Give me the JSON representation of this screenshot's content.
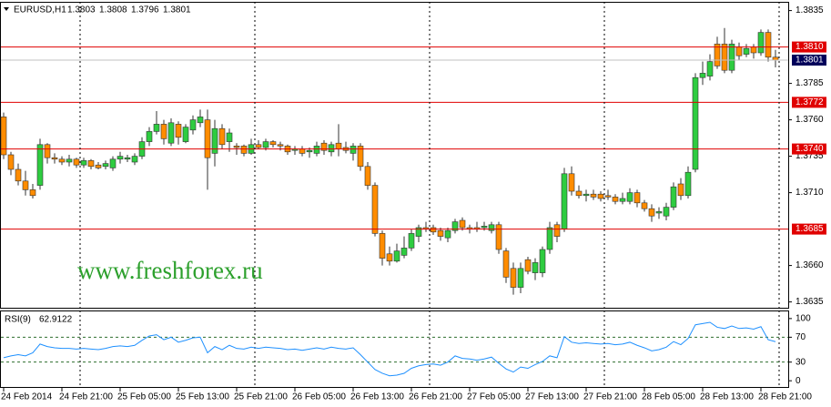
{
  "chart_data": [
    {
      "type": "candlestick",
      "title": "EURUSD,H1",
      "watermark": "www.freshforex.ru",
      "categories": [
        "24 Feb 2014",
        null,
        null,
        null,
        null,
        null,
        null,
        null,
        "24 Feb 21:00",
        null,
        null,
        null,
        null,
        null,
        null,
        null,
        "25 Feb 05:00",
        null,
        null,
        null,
        null,
        null,
        null,
        null,
        "25 Feb 13:00",
        null,
        null,
        null,
        null,
        null,
        null,
        null,
        "25 Feb 21:00",
        null,
        null,
        null,
        null,
        null,
        null,
        null,
        "26 Feb 05:00",
        null,
        null,
        null,
        null,
        null,
        null,
        null,
        "26 Feb 13:00",
        null,
        null,
        null,
        null,
        null,
        null,
        null,
        "26 Feb 21:00",
        null,
        null,
        null,
        null,
        null,
        null,
        null,
        "27 Feb 05:00",
        null,
        null,
        null,
        null,
        null,
        null,
        null,
        "27 Feb 13:00",
        null,
        null,
        null,
        null,
        null,
        null,
        null,
        "27 Feb 21:00",
        null,
        null,
        null,
        null,
        null,
        null,
        null,
        "28 Feb 05:00",
        null,
        null,
        null,
        null,
        null,
        null,
        null,
        "28 Feb 13:00",
        null,
        null,
        null,
        null,
        null,
        null,
        null,
        "28 Feb 21:00",
        null,
        null
      ],
      "open": [
        1.3762,
        1.3736,
        1.3726,
        1.3718,
        1.3712,
        1.3715,
        1.3743,
        1.3734,
        1.3733,
        1.3731,
        1.3733,
        1.3729,
        1.3732,
        1.3729,
        1.3728,
        1.3727,
        1.3733,
        1.3733,
        1.3731,
        1.3735,
        1.3745,
        1.3752,
        1.3757,
        1.3744,
        1.3757,
        1.3745,
        1.3753,
        1.3758,
        1.376,
        1.3737,
        1.3754,
        1.3745,
        1.3742,
        1.3742,
        1.3737,
        1.3743,
        1.3741,
        1.3745,
        1.3743,
        1.3742,
        1.3739,
        1.374,
        1.3738,
        1.3737,
        1.3744,
        1.3738,
        1.3744,
        1.3741,
        1.3737,
        1.3742,
        1.3728,
        1.3715,
        1.3682,
        1.3668,
        1.3663,
        1.3667,
        1.3672,
        1.368,
        1.3686,
        1.3686,
        1.3684,
        1.3679,
        1.3684,
        1.3691,
        1.3686,
        1.3686,
        1.3686,
        1.3684,
        1.3688,
        1.367,
        1.3658,
        1.3645,
        1.3664,
        1.3655,
        1.3655,
        1.3671,
        1.3688,
        1.3685,
        1.3723,
        1.3711,
        1.3708,
        1.3709,
        1.3709,
        1.3708,
        1.3707,
        1.3704,
        1.3704,
        1.371,
        1.3703,
        1.3699,
        1.3696,
        1.3694,
        1.37,
        1.3716,
        1.3708,
        1.3726,
        1.3789,
        1.379,
        1.3812,
        1.3812,
        1.3794,
        1.381,
        1.3805,
        1.381,
        1.3806,
        1.382,
        1.3803
      ],
      "high": [
        1.3765,
        1.3738,
        1.373,
        1.3725,
        1.3716,
        1.3747,
        1.3744,
        1.3737,
        1.3735,
        1.3736,
        1.3734,
        1.3734,
        1.3733,
        1.3731,
        1.3732,
        1.3735,
        1.3738,
        1.3736,
        1.3737,
        1.3748,
        1.3755,
        1.3766,
        1.376,
        1.3761,
        1.3759,
        1.3757,
        1.3763,
        1.3767,
        1.3767,
        1.376,
        1.3757,
        1.3754,
        1.3744,
        1.3743,
        1.3747,
        1.3746,
        1.3747,
        1.3746,
        1.3745,
        1.3743,
        1.3742,
        1.3742,
        1.3741,
        1.3745,
        1.3746,
        1.3745,
        1.3757,
        1.3745,
        1.3744,
        1.3744,
        1.3731,
        1.3717,
        1.3684,
        1.3673,
        1.3675,
        1.368,
        1.3685,
        1.3688,
        1.369,
        1.3688,
        1.3686,
        1.3686,
        1.3692,
        1.3693,
        1.3688,
        1.369,
        1.369,
        1.369,
        1.369,
        1.3672,
        1.3662,
        1.3662,
        1.3666,
        1.3665,
        1.3673,
        1.369,
        1.369,
        1.3727,
        1.3728,
        1.3715,
        1.3712,
        1.3712,
        1.3711,
        1.3712,
        1.3709,
        1.371,
        1.3713,
        1.3712,
        1.3705,
        1.3702,
        1.37,
        1.3703,
        1.3717,
        1.372,
        1.3728,
        1.3792,
        1.38,
        1.3805,
        1.3817,
        1.3823,
        1.3815,
        1.3813,
        1.3812,
        1.3812,
        1.3822,
        1.3822,
        1.3808
      ],
      "low": [
        1.3733,
        1.3722,
        1.3715,
        1.3708,
        1.3706,
        1.3712,
        1.373,
        1.373,
        1.3729,
        1.3728,
        1.3727,
        1.3727,
        1.3726,
        1.3726,
        1.3726,
        1.3725,
        1.373,
        1.3731,
        1.3729,
        1.3733,
        1.3742,
        1.375,
        1.3743,
        1.3742,
        1.3743,
        1.3744,
        1.375,
        1.3755,
        1.3712,
        1.3728,
        1.374,
        1.3738,
        1.3736,
        1.3735,
        1.3736,
        1.374,
        1.3739,
        1.3741,
        1.3739,
        1.3736,
        1.3736,
        1.3735,
        1.3734,
        1.3735,
        1.3736,
        1.3735,
        1.3735,
        1.3737,
        1.3732,
        1.3725,
        1.3712,
        1.368,
        1.366,
        1.366,
        1.3662,
        1.3665,
        1.367,
        1.3676,
        1.3683,
        1.3681,
        1.3677,
        1.3676,
        1.3682,
        1.3684,
        1.3682,
        1.3683,
        1.3684,
        1.3682,
        1.3668,
        1.3648,
        1.364,
        1.3641,
        1.3654,
        1.365,
        1.3652,
        1.3668,
        1.3676,
        1.3683,
        1.3708,
        1.3706,
        1.3704,
        1.3705,
        1.3704,
        1.3705,
        1.3702,
        1.3702,
        1.3702,
        1.37,
        1.3697,
        1.369,
        1.3692,
        1.3691,
        1.3698,
        1.3705,
        1.3706,
        1.3724,
        1.3784,
        1.3787,
        1.3795,
        1.3792,
        1.3792,
        1.3801,
        1.3803,
        1.3802,
        1.3804,
        1.38,
        1.3796
      ],
      "close": [
        1.3736,
        1.3726,
        1.3718,
        1.3712,
        1.3708,
        1.3743,
        1.3734,
        1.3733,
        1.3731,
        1.3733,
        1.3729,
        1.3732,
        1.3728,
        1.3727,
        1.373,
        1.3733,
        1.3735,
        1.3734,
        1.3735,
        1.3745,
        1.3752,
        1.3757,
        1.3747,
        1.3758,
        1.3748,
        1.3755,
        1.376,
        1.3762,
        1.3734,
        1.3754,
        1.3743,
        1.3751,
        1.3741,
        1.3737,
        1.3743,
        1.3741,
        1.3745,
        1.3743,
        1.3742,
        1.3738,
        1.374,
        1.3737,
        1.3739,
        1.3742,
        1.3739,
        1.3743,
        1.374,
        1.3739,
        1.3742,
        1.3728,
        1.3715,
        1.3682,
        1.3665,
        1.3663,
        1.367,
        1.3672,
        1.3682,
        1.3686,
        1.3685,
        1.3683,
        1.368,
        1.3684,
        1.369,
        1.3686,
        1.3685,
        1.3685,
        1.3687,
        1.3688,
        1.3671,
        1.3652,
        1.3645,
        1.3658,
        1.3656,
        1.3662,
        1.3671,
        1.3686,
        1.368,
        1.3723,
        1.3711,
        1.3708,
        1.3709,
        1.3707,
        1.3706,
        1.3707,
        1.3704,
        1.3706,
        1.371,
        1.3703,
        1.3699,
        1.3694,
        1.3697,
        1.37,
        1.3714,
        1.3708,
        1.3724,
        1.3789,
        1.3792,
        1.38,
        1.3797,
        1.3794,
        1.3812,
        1.3804,
        1.3809,
        1.3806,
        1.382,
        1.3803,
        1.3801
      ],
      "up_color": "#2ecc40",
      "down_color": "#ff8c00",
      "ylim": [
        1.3631,
        1.3841
      ],
      "yticks": [
        1.3835,
        1.3785,
        {
          "value": 1.376,
          "label": "1.3760"
        },
        1.3735,
        {
          "value": 1.371,
          "label": "1.3710"
        },
        {
          "value": 1.366,
          "label": "1.3660"
        },
        1.3635
      ],
      "levels": [
        {
          "value": 1.381,
          "label": "1.3810"
        },
        1.3772,
        {
          "value": 1.374,
          "label": "1.3740"
        },
        1.3685
      ],
      "level_color": "#e00000",
      "last_price_color": "#00005a"
    },
    {
      "type": "line",
      "title": "RSI(9)",
      "color": "#1e90ff",
      "values": [
        37,
        40,
        42,
        40,
        45,
        59,
        55,
        53,
        52,
        52,
        51,
        52,
        51,
        50,
        52,
        55,
        56,
        55,
        57,
        65,
        72,
        74,
        66,
        70,
        62,
        65,
        69,
        70,
        45,
        55,
        50,
        57,
        52,
        51,
        54,
        52,
        54,
        53,
        52,
        50,
        51,
        49,
        51,
        53,
        51,
        54,
        52,
        51,
        53,
        42,
        30,
        18,
        12,
        8,
        9,
        12,
        20,
        24,
        26,
        27,
        25,
        30,
        40,
        36,
        35,
        33,
        35,
        38,
        28,
        19,
        14,
        22,
        20,
        26,
        31,
        40,
        37,
        71,
        62,
        60,
        61,
        60,
        59,
        60,
        58,
        59,
        62,
        57,
        53,
        48,
        50,
        54,
        63,
        58,
        68,
        90,
        92,
        94,
        86,
        84,
        88,
        84,
        85,
        83,
        87,
        66,
        62.9122
      ],
      "ylim": [
        -10,
        113
      ],
      "yticks": [
        100,
        70,
        30,
        0
      ],
      "levels": [
        70,
        30
      ]
    }
  ]
}
